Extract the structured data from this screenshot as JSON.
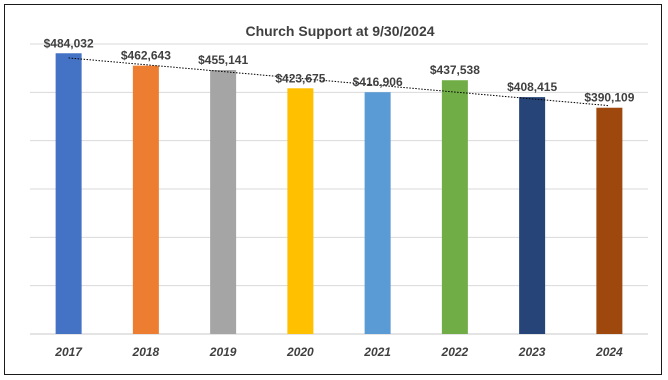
{
  "chart_data": {
    "type": "bar",
    "title": "Church Support at 9/30/2024",
    "categories": [
      "2017",
      "2018",
      "2019",
      "2020",
      "2021",
      "2022",
      "2023",
      "2024"
    ],
    "values": [
      484032,
      462643,
      455141,
      423675,
      416906,
      437538,
      408415,
      390109
    ],
    "data_labels": [
      "$484,032",
      "$462,643",
      "$455,141",
      "$423,675",
      "$416,906",
      "$437,538",
      "$408,415",
      "$390,109"
    ],
    "colors": [
      "#4472C4",
      "#ED7D31",
      "#A5A5A5",
      "#FFC000",
      "#5B9BD5",
      "#70AD47",
      "#264478",
      "#9E480E"
    ],
    "ylim": [
      0,
      500000
    ],
    "grid": true,
    "trendline": "linear",
    "xlabel": "",
    "ylabel": ""
  }
}
